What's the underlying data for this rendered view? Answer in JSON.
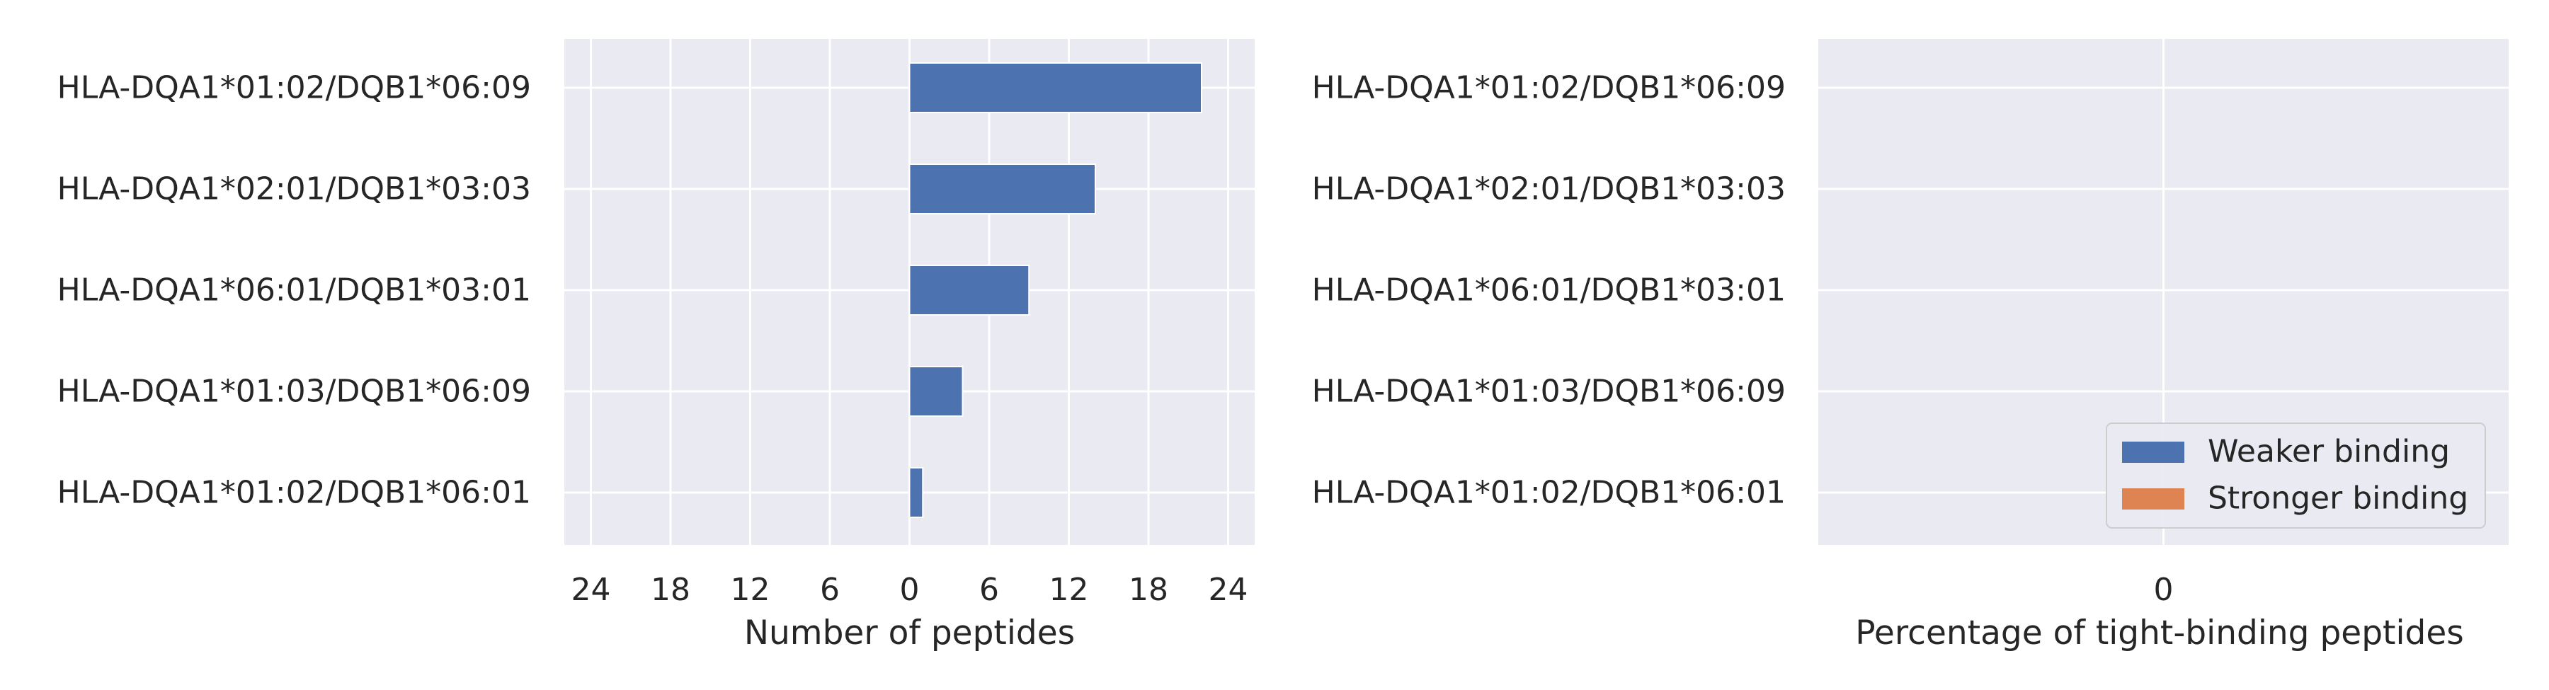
{
  "chart_data": [
    {
      "type": "bar",
      "orientation": "horizontal",
      "categories": [
        "HLA-DQA1*01:02/DQB1*06:09",
        "HLA-DQA1*02:01/DQB1*03:03",
        "HLA-DQA1*06:01/DQB1*03:01",
        "HLA-DQA1*01:03/DQB1*06:09",
        "HLA-DQA1*01:02/DQB1*06:01"
      ],
      "series": [
        {
          "name": "Weaker binding",
          "values": [
            22,
            14,
            9,
            4,
            1
          ],
          "color": "#4c72b0"
        },
        {
          "name": "Stronger binding",
          "values": [
            0,
            0,
            0,
            0,
            0
          ],
          "color": "#dd8452"
        }
      ],
      "xlabel": "Number of peptides",
      "xlim": [
        -26,
        26
      ],
      "xticks": [
        -24,
        -18,
        -12,
        -6,
        0,
        6,
        12,
        18,
        24
      ],
      "xtick_labels": [
        "24",
        "18",
        "12",
        "6",
        "0",
        "6",
        "12",
        "18",
        "24"
      ],
      "grid": true
    },
    {
      "type": "bar",
      "orientation": "horizontal",
      "categories": [
        "HLA-DQA1*01:02/DQB1*06:09",
        "HLA-DQA1*02:01/DQB1*03:03",
        "HLA-DQA1*06:01/DQB1*03:01",
        "HLA-DQA1*01:03/DQB1*06:09",
        "HLA-DQA1*01:02/DQB1*06:01"
      ],
      "values": [
        0,
        0,
        0,
        0,
        0
      ],
      "xlabel": "Percentage of tight-binding peptides",
      "xticks": [
        0
      ],
      "xtick_labels": [
        "0"
      ],
      "grid": true,
      "legend": {
        "placement": "lower-right",
        "entries": [
          {
            "label": "Weaker binding",
            "color": "#4c72b0"
          },
          {
            "label": "Stronger binding",
            "color": "#dd8452"
          }
        ]
      }
    }
  ]
}
